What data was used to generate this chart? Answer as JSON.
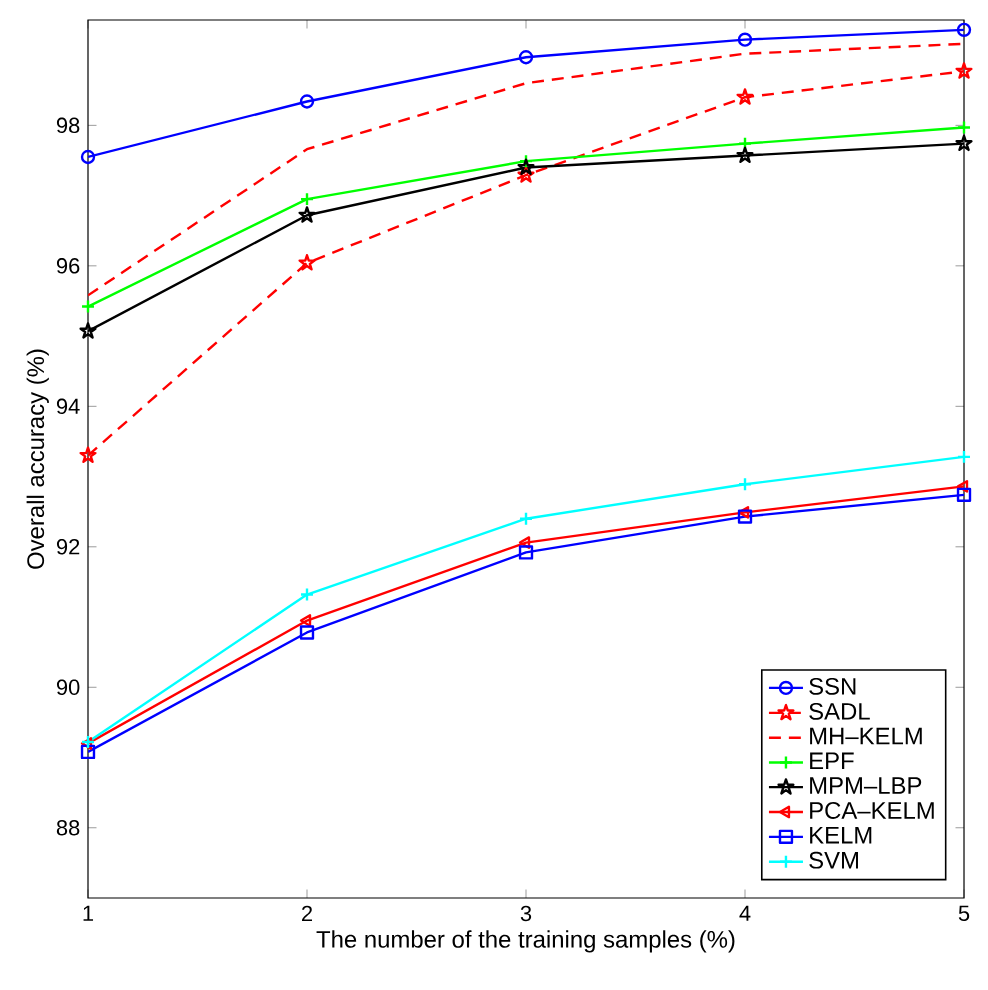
{
  "chart_data": {
    "type": "line",
    "xlabel": "The number of the training samples (%)",
    "ylabel": "Overall accuracy (%)",
    "x": [
      1,
      2,
      3,
      4,
      5
    ],
    "xlim": [
      1,
      5
    ],
    "xticks": [
      1,
      2,
      3,
      4,
      5
    ],
    "ylim": [
      87,
      99.5
    ],
    "yticks": [
      88,
      90,
      92,
      94,
      96,
      98
    ],
    "grid": false,
    "legend": "bottom right",
    "series": [
      {
        "name": "SSN",
        "color": "#0000ff",
        "marker": "circle",
        "line_style": "solid",
        "values": [
          97.55,
          98.34,
          98.97,
          99.22,
          99.36
        ]
      },
      {
        "name": "SADL",
        "color": "#ff0000",
        "marker": "star",
        "line_style": "dashed",
        "values": [
          93.3,
          96.04,
          97.29,
          98.4,
          98.77
        ]
      },
      {
        "name": "MH–KELM",
        "color": "#ff0000",
        "marker": "none",
        "line_style": "dashed",
        "values": [
          95.58,
          97.66,
          98.6,
          99.02,
          99.16
        ]
      },
      {
        "name": "EPF",
        "color": "#00ff00",
        "marker": "cross",
        "line_style": "solid",
        "values": [
          95.42,
          96.95,
          97.49,
          97.74,
          97.97
        ]
      },
      {
        "name": "MPM–LBP",
        "color": "#000000",
        "marker": "star",
        "line_style": "solid",
        "values": [
          95.07,
          96.72,
          97.4,
          97.57,
          97.74
        ]
      },
      {
        "name": "PCA–KELM",
        "color": "#ff0000",
        "marker": "triangle",
        "line_style": "solid",
        "values": [
          89.2,
          90.95,
          92.06,
          92.49,
          92.86
        ]
      },
      {
        "name": "KELM",
        "color": "#0000ff",
        "marker": "square",
        "line_style": "solid",
        "values": [
          89.08,
          90.78,
          91.92,
          92.43,
          92.74
        ]
      },
      {
        "name": "SVM",
        "color": "#00ffff",
        "marker": "cross",
        "line_style": "solid",
        "values": [
          89.22,
          91.32,
          92.4,
          92.89,
          93.28
        ]
      }
    ]
  }
}
